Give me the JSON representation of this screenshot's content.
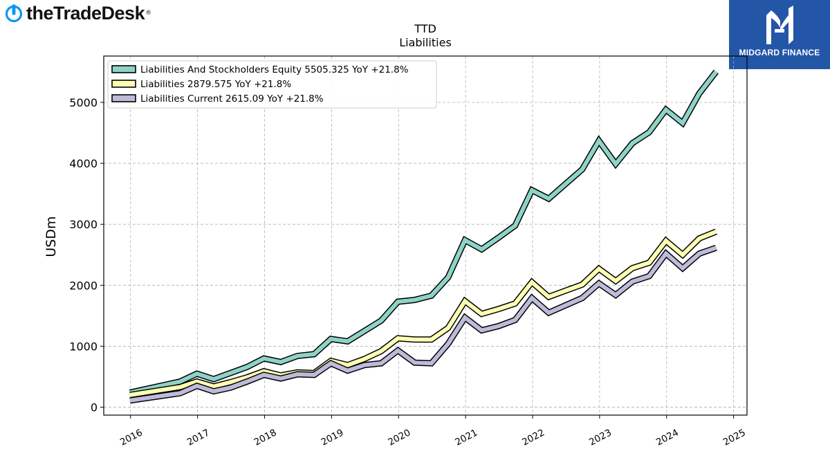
{
  "brand": {
    "name": "theTradeDesk",
    "icon": "trade-desk-logo-icon",
    "color": "#0099f0"
  },
  "badge": {
    "name": "MIDGARD FINANCE",
    "icon": "midgard-monogram-icon",
    "bg": "#2456a8"
  },
  "chart_data": {
    "type": "line",
    "title": "TTD",
    "subtitle": "Liabilities",
    "ylabel": "USDm",
    "xlabel": "",
    "xlim": [
      2015.6,
      2025.2
    ],
    "ylim": [
      -130,
      5760
    ],
    "x_ticks": [
      "2016",
      "2017",
      "2018",
      "2019",
      "2020",
      "2021",
      "2022",
      "2023",
      "2024",
      "2025"
    ],
    "y_ticks": [
      "0",
      "1000",
      "2000",
      "3000",
      "4000",
      "5000"
    ],
    "grid": true,
    "legend_placement": "top-left",
    "x": [
      2015.99,
      2016.74,
      2016.99,
      2017.24,
      2017.49,
      2017.74,
      2017.99,
      2018.24,
      2018.49,
      2018.74,
      2018.99,
      2019.24,
      2019.49,
      2019.74,
      2019.99,
      2020.24,
      2020.49,
      2020.74,
      2020.99,
      2021.24,
      2021.49,
      2021.74,
      2021.99,
      2022.24,
      2022.49,
      2022.74,
      2022.99,
      2023.24,
      2023.49,
      2023.74,
      2023.99,
      2024.24,
      2024.49,
      2024.74
    ],
    "series": [
      {
        "name": "Liabilities And Stockholders Equity",
        "legend": "Liabilities And Stockholders Equity  5505.325 YoY +21.8%",
        "color": "#8dd3c7",
        "values": [
          240,
          420,
          550,
          460,
          560,
          660,
          800,
          740,
          840,
          870,
          1120,
          1080,
          1250,
          1420,
          1730,
          1760,
          1830,
          2130,
          2740,
          2590,
          2780,
          2980,
          3560,
          3420,
          3660,
          3900,
          4370,
          3990,
          4330,
          4510,
          4880,
          4660,
          5150,
          5505
        ]
      },
      {
        "name": "Liabilities",
        "legend": "Liabilities  2879.575 YoY +21.8%",
        "color": "#ffffb3",
        "values": [
          200,
          330,
          420,
          340,
          410,
          490,
          590,
          520,
          570,
          560,
          760,
          690,
          790,
          920,
          1130,
          1110,
          1110,
          1300,
          1740,
          1530,
          1610,
          1700,
          2050,
          1810,
          1910,
          2010,
          2270,
          2070,
          2280,
          2370,
          2730,
          2500,
          2770,
          2880
        ]
      },
      {
        "name": "Liabilities Current",
        "legend": "Liabilities Current  2615.09 YoY +21.8%",
        "color": "#bebada",
        "values": [
          110,
          230,
          350,
          260,
          320,
          420,
          530,
          470,
          540,
          530,
          720,
          600,
          690,
          720,
          930,
          730,
          720,
          1040,
          1470,
          1260,
          1330,
          1430,
          1790,
          1550,
          1670,
          1790,
          2030,
          1840,
          2060,
          2150,
          2520,
          2280,
          2520,
          2615
        ]
      }
    ]
  }
}
